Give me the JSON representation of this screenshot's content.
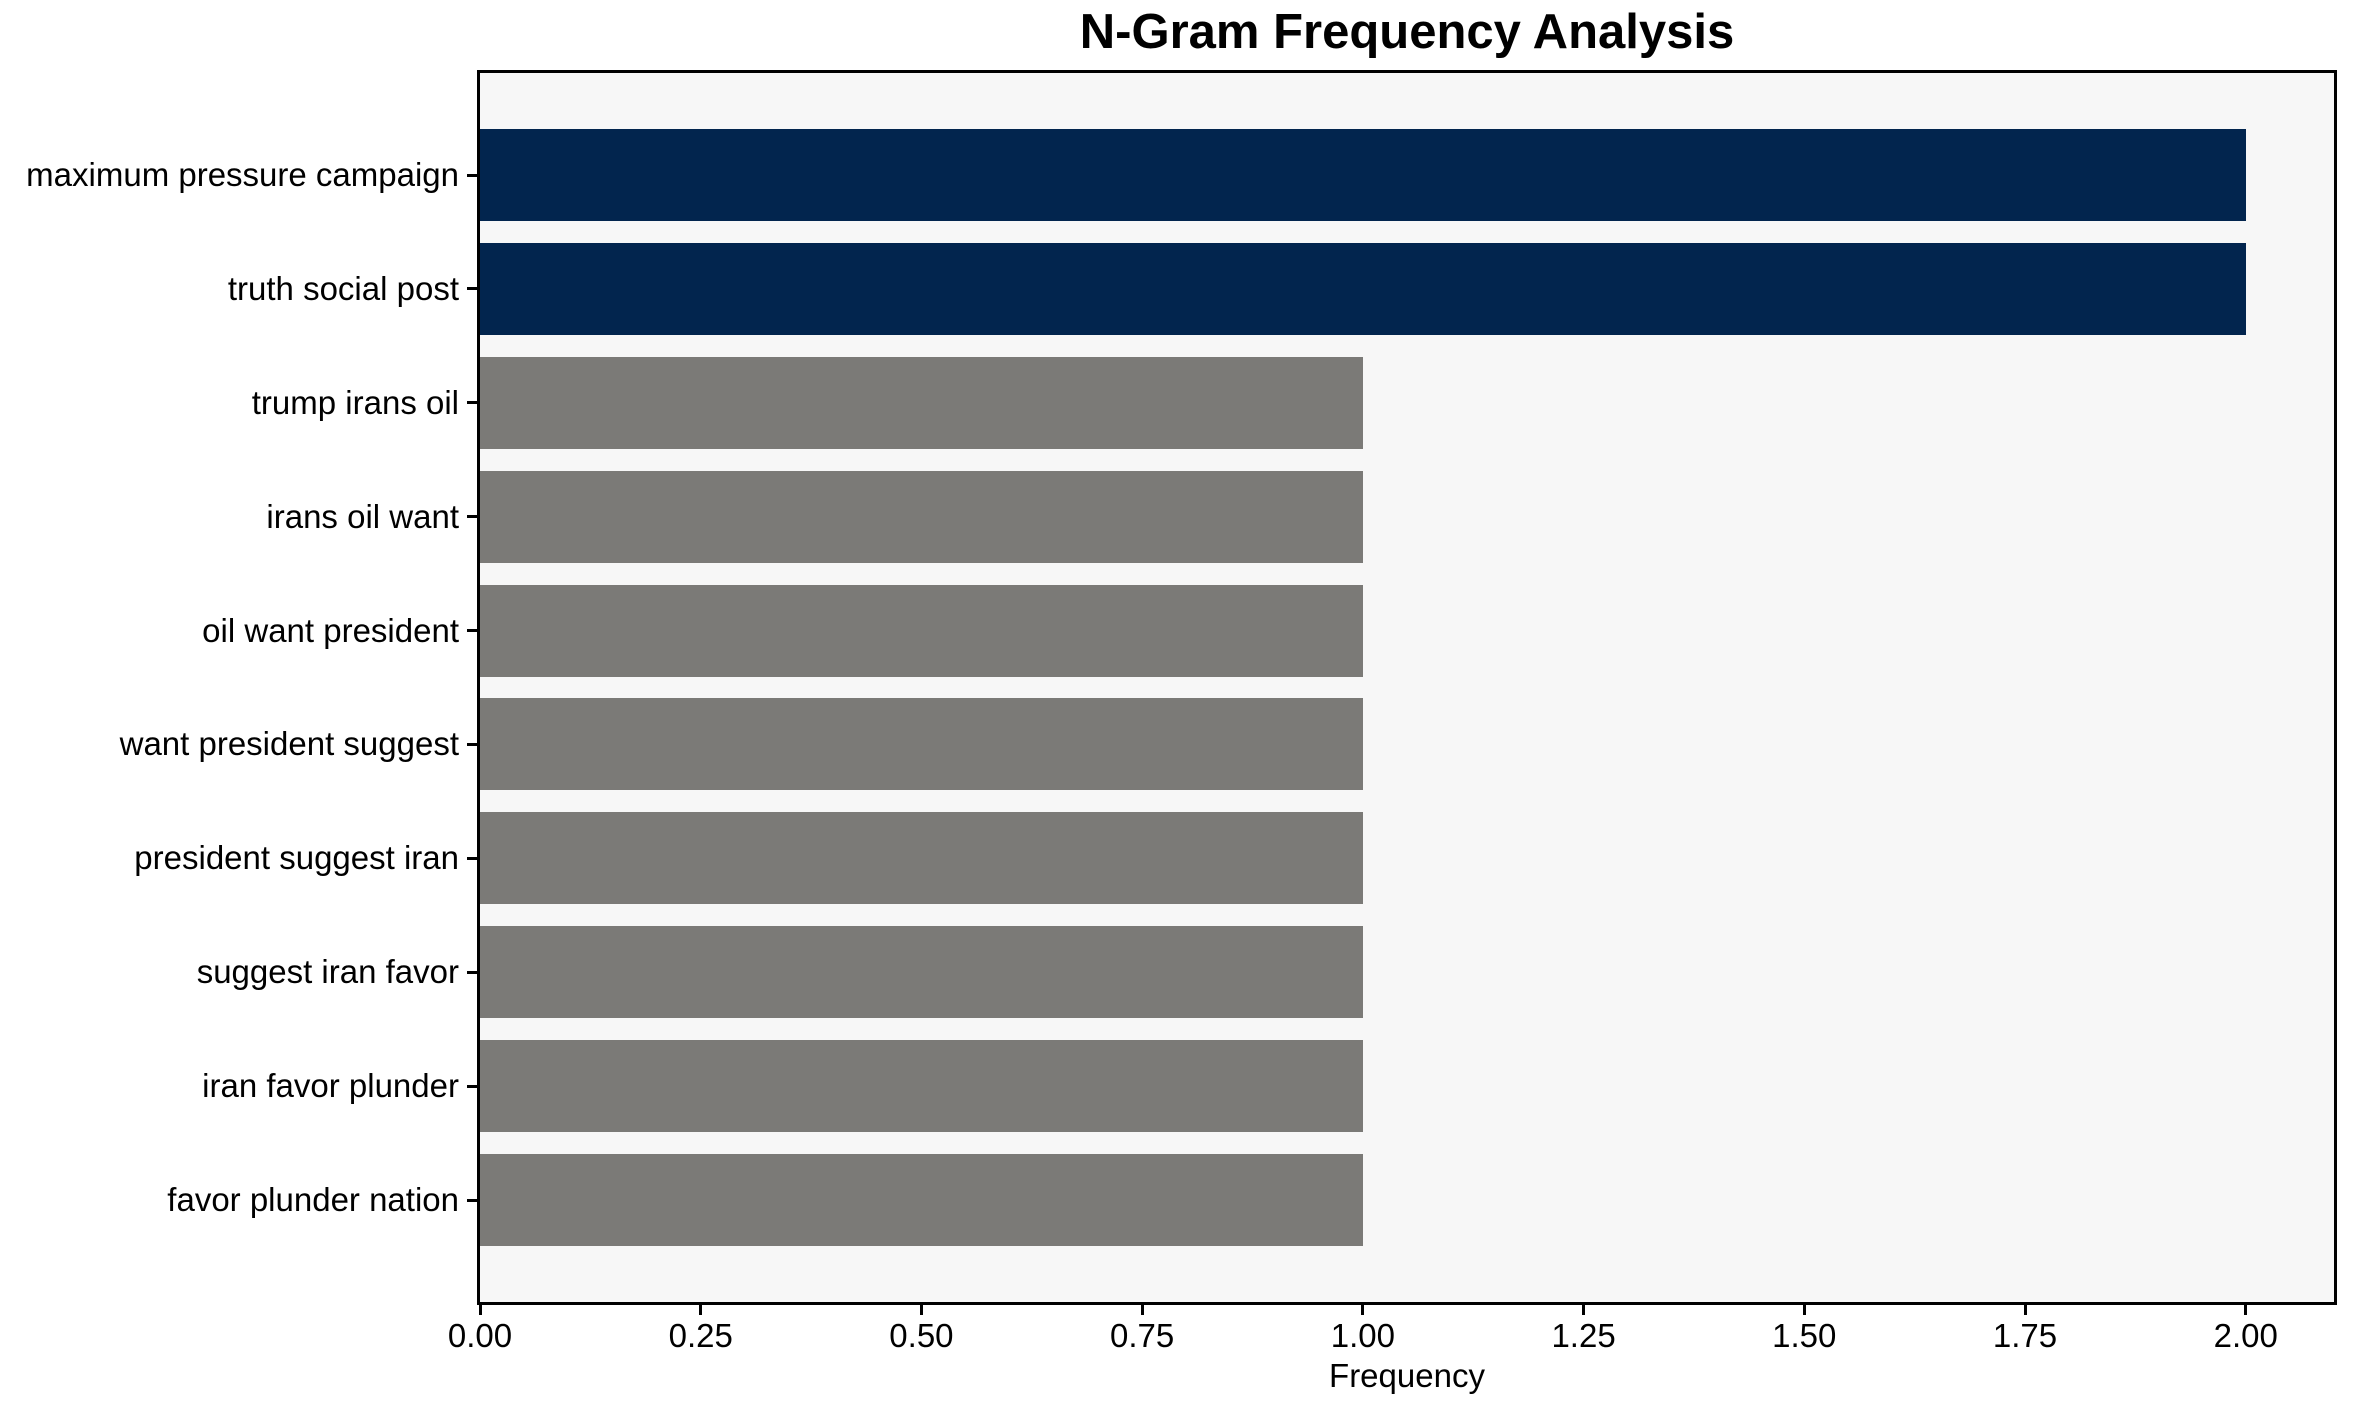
{
  "chart_data": {
    "type": "bar",
    "orientation": "horizontal",
    "title": "N-Gram Frequency Analysis",
    "xlabel": "Frequency",
    "ylabel": "",
    "categories": [
      "maximum pressure campaign",
      "truth social post",
      "trump irans oil",
      "irans oil want",
      "oil want president",
      "want president suggest",
      "president suggest iran",
      "suggest iran favor",
      "iran favor plunder",
      "favor plunder nation"
    ],
    "values": [
      2,
      2,
      1,
      1,
      1,
      1,
      1,
      1,
      1,
      1
    ],
    "bar_colors": [
      "#02254e",
      "#02254e",
      "#7b7a77",
      "#7b7a77",
      "#7b7a77",
      "#7b7a77",
      "#7b7a77",
      "#7b7a77",
      "#7b7a77",
      "#7b7a77"
    ],
    "xlim": [
      0,
      2.1
    ],
    "xtick_values": [
      0,
      0.25,
      0.5,
      0.75,
      1.0,
      1.25,
      1.5,
      1.75,
      2.0
    ],
    "xtick_labels": [
      "0.00",
      "0.25",
      "0.50",
      "0.75",
      "1.00",
      "1.25",
      "1.50",
      "1.75",
      "2.00"
    ],
    "grid": false,
    "legend": null,
    "colors": {
      "highlight_bar": "#02254e",
      "default_bar": "#7b7a77",
      "plot_background": "#f7f7f7",
      "figure_background": "#ffffff",
      "axis": "#000000",
      "text": "#000000"
    }
  }
}
